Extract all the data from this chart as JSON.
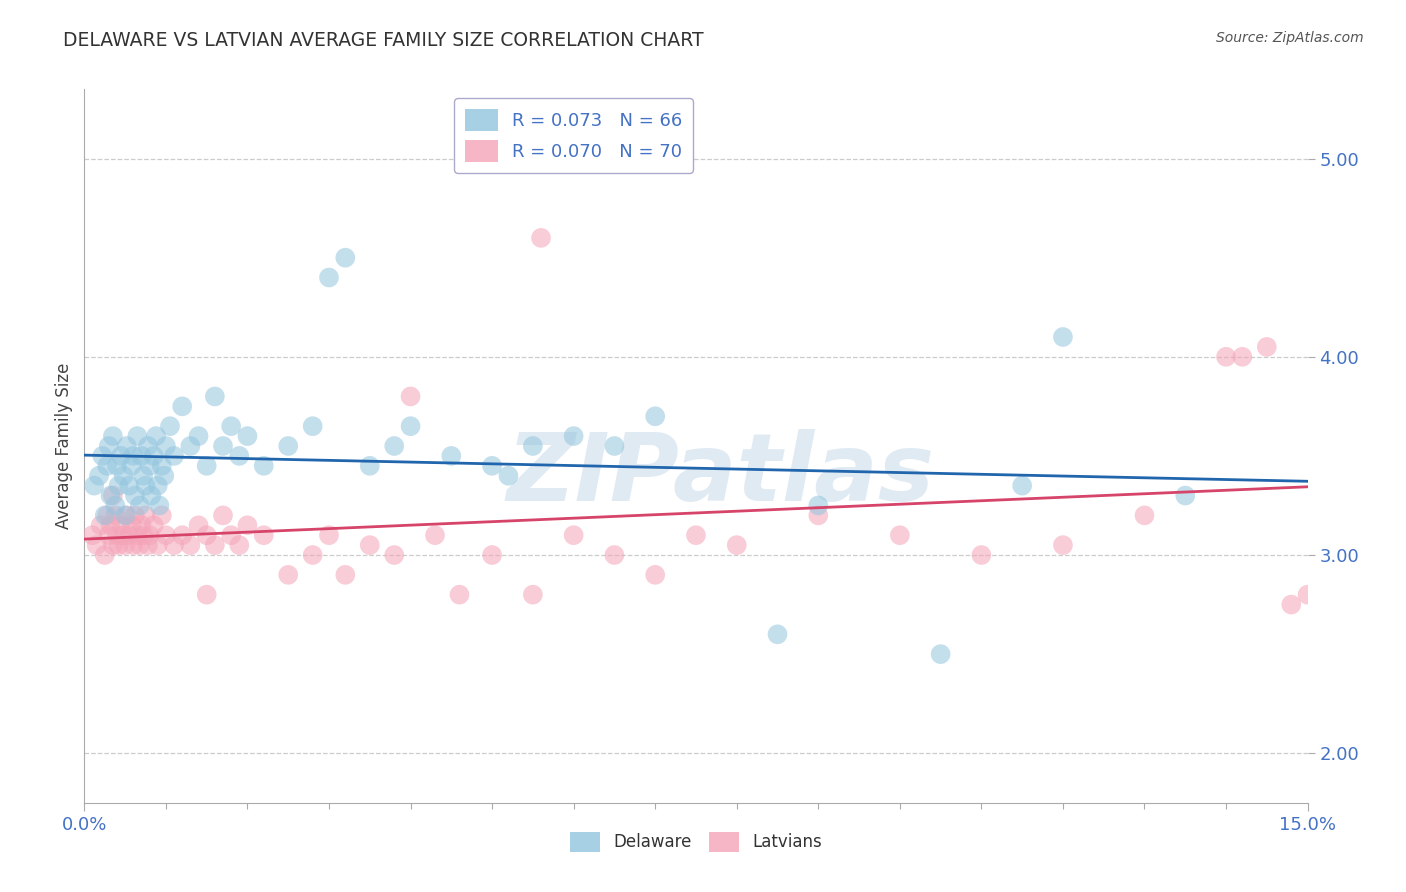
{
  "title": "DELAWARE VS LATVIAN AVERAGE FAMILY SIZE CORRELATION CHART",
  "source": "Source: ZipAtlas.com",
  "ylabel": "Average Family Size",
  "xlim": [
    0.0,
    15.0
  ],
  "ylim": [
    1.75,
    5.35
  ],
  "yticks": [
    2.0,
    3.0,
    4.0,
    5.0
  ],
  "delaware_color": "#92c5de",
  "latvian_color": "#f4a4b8",
  "delaware_line_color": "#2166ac",
  "latvian_line_color": "#d6446a",
  "watermark": "ZIPatlas",
  "background_color": "#ffffff",
  "del_R": "0.073",
  "del_N": "66",
  "lat_R": "0.070",
  "lat_N": "70",
  "del_legend_label": "R = 0.073   N = 66",
  "lat_legend_label": "R = 0.070   N = 70",
  "bottom_legend_del": "Delaware",
  "bottom_legend_lat": "Latvians",
  "del_x": [
    0.12,
    0.18,
    0.22,
    0.25,
    0.28,
    0.3,
    0.32,
    0.35,
    0.38,
    0.4,
    0.42,
    0.45,
    0.48,
    0.5,
    0.52,
    0.55,
    0.58,
    0.6,
    0.62,
    0.65,
    0.68,
    0.7,
    0.72,
    0.75,
    0.78,
    0.8,
    0.82,
    0.85,
    0.88,
    0.9,
    0.92,
    0.95,
    0.98,
    1.0,
    1.05,
    1.1,
    1.2,
    1.3,
    1.4,
    1.5,
    1.6,
    1.7,
    1.8,
    1.9,
    2.0,
    2.2,
    2.5,
    2.8,
    3.0,
    3.2,
    3.5,
    3.8,
    4.0,
    4.5,
    5.0,
    5.2,
    5.5,
    6.0,
    6.5,
    7.0,
    8.5,
    9.0,
    10.5,
    11.5,
    12.0,
    13.5
  ],
  "del_y": [
    3.35,
    3.4,
    3.5,
    3.2,
    3.45,
    3.55,
    3.3,
    3.6,
    3.25,
    3.45,
    3.35,
    3.5,
    3.4,
    3.2,
    3.55,
    3.35,
    3.45,
    3.5,
    3.3,
    3.6,
    3.25,
    3.5,
    3.4,
    3.35,
    3.55,
    3.45,
    3.3,
    3.5,
    3.6,
    3.35,
    3.25,
    3.45,
    3.4,
    3.55,
    3.65,
    3.5,
    3.75,
    3.55,
    3.6,
    3.45,
    3.8,
    3.55,
    3.65,
    3.5,
    3.6,
    3.45,
    3.55,
    3.65,
    4.4,
    4.5,
    3.45,
    3.55,
    3.65,
    3.5,
    3.45,
    3.4,
    3.55,
    3.6,
    3.55,
    3.7,
    2.6,
    3.25,
    2.5,
    3.35,
    4.1,
    3.3
  ],
  "lat_x": [
    0.1,
    0.15,
    0.2,
    0.25,
    0.28,
    0.3,
    0.32,
    0.35,
    0.38,
    0.4,
    0.42,
    0.45,
    0.48,
    0.5,
    0.52,
    0.55,
    0.58,
    0.6,
    0.62,
    0.65,
    0.68,
    0.7,
    0.72,
    0.75,
    0.78,
    0.8,
    0.85,
    0.9,
    0.95,
    1.0,
    1.1,
    1.2,
    1.3,
    1.4,
    1.5,
    1.6,
    1.7,
    1.8,
    1.9,
    2.0,
    2.2,
    2.5,
    2.8,
    3.0,
    3.2,
    3.5,
    3.8,
    4.0,
    4.3,
    4.6,
    5.0,
    5.5,
    5.6,
    6.0,
    6.5,
    7.0,
    7.5,
    8.0,
    9.0,
    10.0,
    11.0,
    12.0,
    13.0,
    14.0,
    14.2,
    14.5,
    14.8,
    15.0,
    0.35,
    1.5
  ],
  "lat_y": [
    3.1,
    3.05,
    3.15,
    3.0,
    3.2,
    3.1,
    3.15,
    3.05,
    3.2,
    3.1,
    3.05,
    3.15,
    3.1,
    3.05,
    3.2,
    3.1,
    3.15,
    3.05,
    3.2,
    3.1,
    3.05,
    3.15,
    3.1,
    3.2,
    3.05,
    3.1,
    3.15,
    3.05,
    3.2,
    3.1,
    3.05,
    3.1,
    3.05,
    3.15,
    3.1,
    3.05,
    3.2,
    3.1,
    3.05,
    3.15,
    3.1,
    2.9,
    3.0,
    3.1,
    2.9,
    3.05,
    3.0,
    3.8,
    3.1,
    2.8,
    3.0,
    2.8,
    4.6,
    3.1,
    3.0,
    2.9,
    3.1,
    3.05,
    3.2,
    3.1,
    3.0,
    3.05,
    3.2,
    4.0,
    4.0,
    4.05,
    2.75,
    2.8,
    3.3,
    2.8
  ]
}
